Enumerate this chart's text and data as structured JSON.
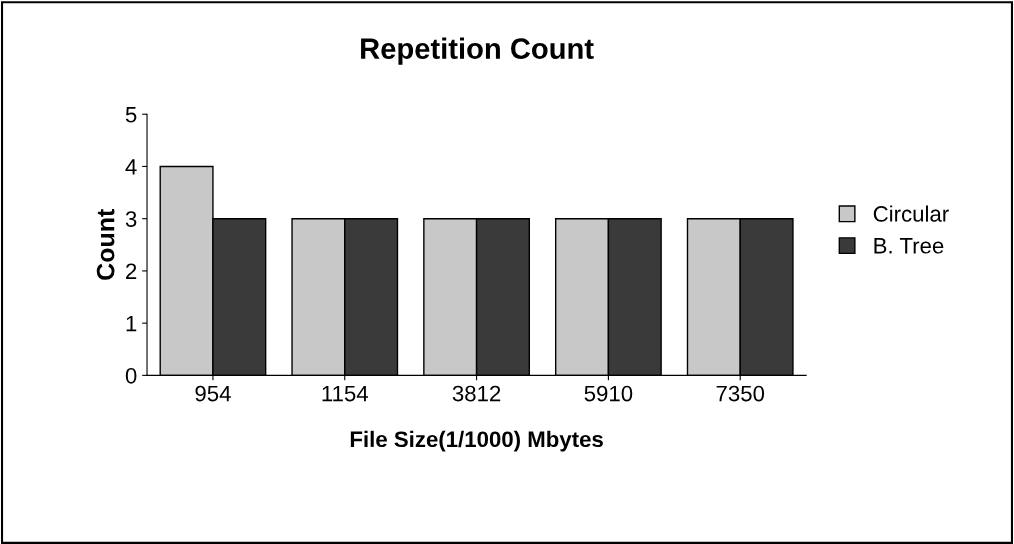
{
  "chart_data": {
    "type": "bar",
    "title": "Repetition Count",
    "xlabel": "File Size(1/1000) Mbytes",
    "ylabel": "Count",
    "categories": [
      "954",
      "1154",
      "3812",
      "5910",
      "7350"
    ],
    "series": [
      {
        "name": "Circular",
        "color": "#c8c8c8",
        "values": [
          4,
          3,
          3,
          3,
          3
        ]
      },
      {
        "name": "B. Tree",
        "color": "#3a3a3a",
        "values": [
          3,
          3,
          3,
          3,
          3
        ]
      }
    ],
    "ylim": [
      0,
      5
    ],
    "yticks": [
      0,
      1,
      2,
      3,
      4,
      5
    ],
    "grid": false,
    "legend": "right"
  }
}
